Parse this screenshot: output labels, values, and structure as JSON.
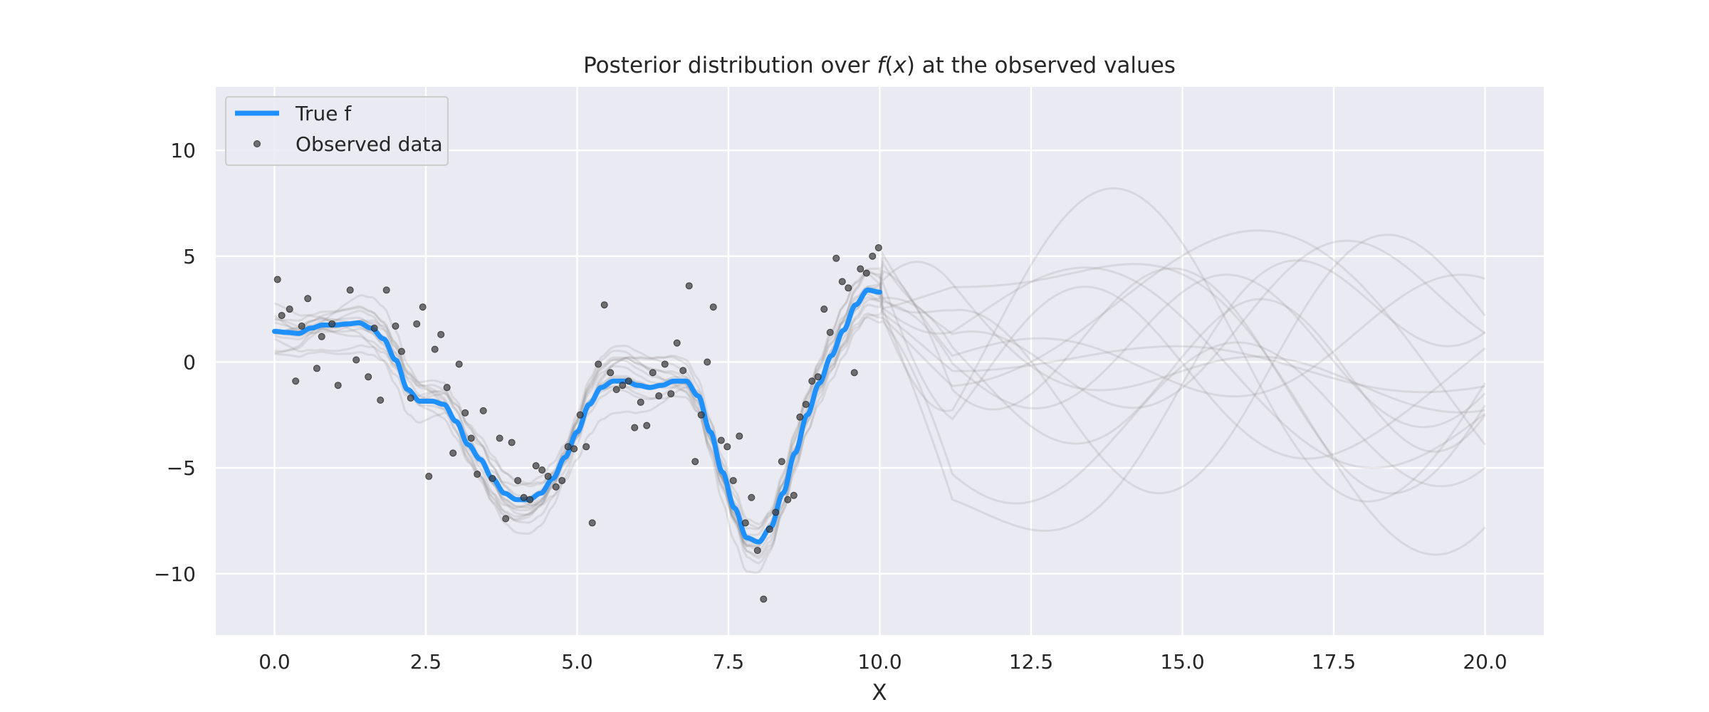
{
  "chart_data": {
    "type": "line",
    "title_parts": [
      "Posterior distribution over ",
      "f",
      "(",
      "x",
      ")",
      " at the observed values"
    ],
    "xlabel": "X",
    "ylabel": "",
    "xlim": [
      -0.97,
      20.97
    ],
    "ylim": [
      -12.9,
      13.0
    ],
    "xticks": [
      0,
      2.5,
      5,
      7.5,
      10,
      12.5,
      15,
      17.5,
      20
    ],
    "xtick_labels": [
      "0.0",
      "2.5",
      "5.0",
      "7.5",
      "10.0",
      "12.5",
      "15.0",
      "17.5",
      "20.0"
    ],
    "yticks": [
      -10,
      -5,
      0,
      5,
      10
    ],
    "ytick_labels": [
      "−10",
      "−5",
      "0",
      "5",
      "10"
    ],
    "grid": true,
    "legend_position": "top-left",
    "series": [
      {
        "name": "True f",
        "kind": "line",
        "color": "#1e90ff",
        "x": [
          0.0,
          0.2,
          0.4,
          0.6,
          0.8,
          1.0,
          1.2,
          1.4,
          1.6,
          1.8,
          2.0,
          2.2,
          2.4,
          2.6,
          2.8,
          3.0,
          3.2,
          3.4,
          3.6,
          3.8,
          4.0,
          4.2,
          4.4,
          4.6,
          4.8,
          5.0,
          5.2,
          5.4,
          5.6,
          5.8,
          6.0,
          6.2,
          6.4,
          6.6,
          6.8,
          7.0,
          7.2,
          7.4,
          7.6,
          7.8,
          8.0,
          8.2,
          8.4,
          8.6,
          8.8,
          9.0,
          9.2,
          9.4,
          9.6,
          9.8,
          10.0
        ],
        "y": [
          1.45,
          1.4,
          1.35,
          1.6,
          1.75,
          1.75,
          1.8,
          1.85,
          1.6,
          1.1,
          0.1,
          -1.3,
          -1.85,
          -1.85,
          -2.0,
          -2.8,
          -3.9,
          -4.6,
          -5.5,
          -6.2,
          -6.5,
          -6.5,
          -6.2,
          -5.5,
          -4.5,
          -3.3,
          -2.0,
          -1.2,
          -0.9,
          -0.9,
          -1.1,
          -1.2,
          -1.1,
          -0.9,
          -0.9,
          -1.6,
          -3.3,
          -5.2,
          -6.9,
          -8.3,
          -8.5,
          -7.8,
          -6.2,
          -4.3,
          -2.5,
          -1.0,
          0.3,
          1.5,
          2.7,
          3.4,
          3.3
        ]
      },
      {
        "name": "Observed data",
        "kind": "scatter",
        "color": "#444444",
        "x": [
          0.05,
          0.12,
          0.25,
          0.35,
          0.45,
          0.55,
          0.7,
          0.78,
          0.95,
          1.05,
          1.25,
          1.35,
          1.55,
          1.65,
          1.75,
          1.85,
          2.0,
          2.1,
          2.25,
          2.35,
          2.45,
          2.55,
          2.65,
          2.75,
          2.85,
          2.95,
          3.05,
          3.15,
          3.25,
          3.35,
          3.45,
          3.6,
          3.72,
          3.82,
          3.92,
          4.02,
          4.12,
          4.22,
          4.32,
          4.42,
          4.52,
          4.65,
          4.75,
          4.85,
          4.95,
          5.05,
          5.15,
          5.25,
          5.35,
          5.45,
          5.55,
          5.65,
          5.75,
          5.85,
          5.95,
          6.05,
          6.15,
          6.25,
          6.35,
          6.45,
          6.55,
          6.65,
          6.75,
          6.85,
          6.95,
          7.05,
          7.15,
          7.25,
          7.38,
          7.48,
          7.58,
          7.68,
          7.78,
          7.88,
          7.98,
          8.08,
          8.18,
          8.28,
          8.38,
          8.48,
          8.58,
          8.68,
          8.78,
          8.88,
          8.98,
          9.08,
          9.18,
          9.28,
          9.38,
          9.48,
          9.58,
          9.68,
          9.78,
          9.88,
          9.98
        ],
        "y": [
          3.9,
          2.2,
          2.5,
          -0.9,
          1.7,
          3.0,
          -0.3,
          1.2,
          1.8,
          -1.1,
          3.4,
          0.1,
          -0.7,
          1.6,
          -1.8,
          3.4,
          1.7,
          0.5,
          -1.7,
          1.8,
          2.6,
          -5.4,
          0.6,
          1.3,
          -1.2,
          -4.3,
          -0.1,
          -2.4,
          -3.6,
          -5.3,
          -2.3,
          -5.5,
          -3.6,
          -7.4,
          -3.8,
          -5.6,
          -6.4,
          -6.5,
          -4.9,
          -5.1,
          -5.4,
          -5.9,
          -5.6,
          -4.0,
          -4.1,
          -2.5,
          -4.0,
          -7.6,
          -0.1,
          2.7,
          -0.5,
          -1.3,
          -1.1,
          -0.9,
          -3.1,
          -1.9,
          -3.0,
          -0.5,
          -1.6,
          -0.1,
          -1.5,
          0.9,
          -0.4,
          3.6,
          -4.7,
          -2.5,
          0.0,
          2.6,
          -3.7,
          -4.0,
          -5.6,
          -3.5,
          -7.6,
          -6.4,
          -8.9,
          -11.2,
          -7.9,
          -7.1,
          -4.7,
          -6.5,
          -6.3,
          -2.6,
          -2.0,
          -0.9,
          -0.7,
          2.5,
          1.4,
          4.9,
          3.8,
          3.5,
          -0.5,
          4.4,
          4.2,
          5.0,
          5.4
        ]
      }
    ]
  }
}
